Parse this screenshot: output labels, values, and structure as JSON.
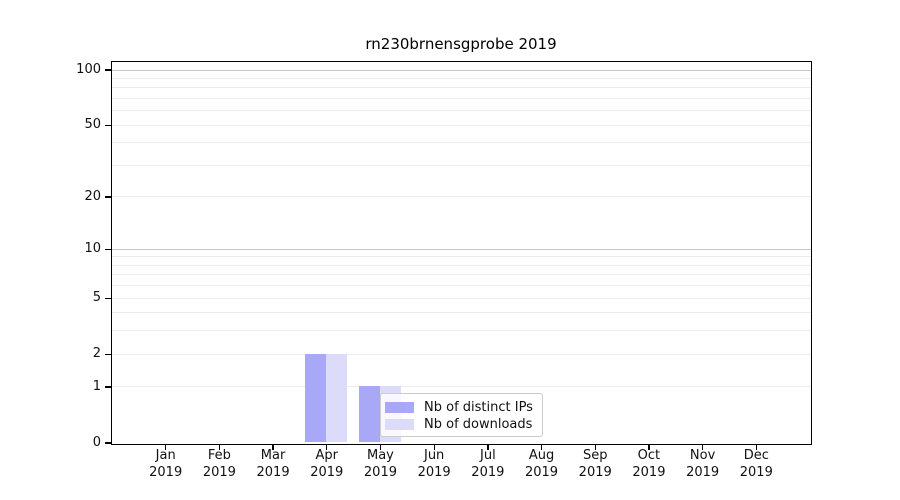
{
  "chart_data": {
    "type": "bar",
    "title": "rn230brnensgprobe 2019",
    "categories": [
      "Jan",
      "Feb",
      "Mar",
      "Apr",
      "May",
      "Jun",
      "Jul",
      "Aug",
      "Sep",
      "Oct",
      "Nov",
      "Dec"
    ],
    "x_year_label": "2019",
    "series": [
      {
        "name": "Nb of distinct IPs",
        "color": "#a8a8f7",
        "values": [
          0,
          0,
          0,
          2,
          1,
          0,
          0,
          0,
          0,
          0,
          0,
          0
        ]
      },
      {
        "name": "Nb of downloads",
        "color": "#dcdcfa",
        "values": [
          0,
          0,
          0,
          2,
          1,
          0,
          0,
          0,
          0,
          0,
          0,
          0
        ]
      }
    ],
    "yscale": "log1p",
    "ylim": [
      0,
      110
    ],
    "yticks": [
      0,
      1,
      2,
      5,
      10,
      20,
      50,
      100
    ],
    "grid": {
      "minor_values": [
        1,
        2,
        3,
        4,
        5,
        6,
        7,
        8,
        9,
        20,
        30,
        40,
        50,
        60,
        70,
        80,
        90
      ],
      "major_values": [
        10,
        100
      ],
      "minor_color": "#ececec",
      "major_color": "#c6c6c6"
    },
    "legend": {
      "entries": [
        "Nb of distinct IPs",
        "Nb of downloads"
      ],
      "position": "inside-bottom-center"
    },
    "axis_color": "#000000",
    "background_color": "#ffffff"
  }
}
